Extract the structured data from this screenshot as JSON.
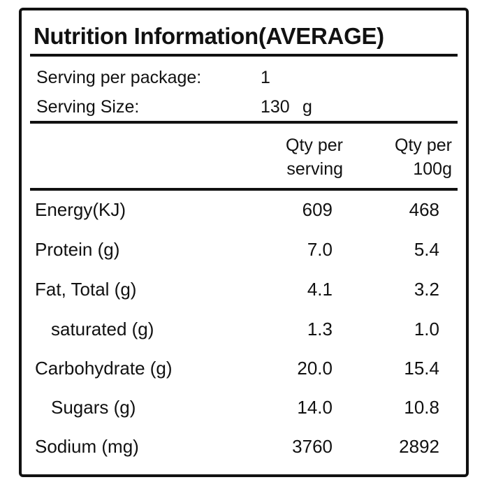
{
  "label": {
    "title": "Nutrition Information(AVERAGE)",
    "serving_per_package": {
      "label": "Serving per package:",
      "value": "1"
    },
    "serving_size": {
      "label": "Serving Size:",
      "value": "130",
      "unit": "g"
    },
    "columns": {
      "per_serving": {
        "line1": "Qty per",
        "line2": "serving"
      },
      "per_100g": {
        "line1": "Qty per",
        "line2": "100g"
      }
    },
    "rows": [
      {
        "name": "Energy(KJ)",
        "per_serving": "609",
        "per_100g": "468",
        "indented": false
      },
      {
        "name": "Protein (g)",
        "per_serving": "7.0",
        "per_100g": "5.4",
        "indented": false
      },
      {
        "name": "Fat, Total (g)",
        "per_serving": "4.1",
        "per_100g": "3.2",
        "indented": false
      },
      {
        "name": "saturated (g)",
        "per_serving": "1.3",
        "per_100g": "1.0",
        "indented": true
      },
      {
        "name": "Carbohydrate (g)",
        "per_serving": "20.0",
        "per_100g": "15.4",
        "indented": false
      },
      {
        "name": "Sugars (g)",
        "per_serving": "14.0",
        "per_100g": "10.8",
        "indented": true
      },
      {
        "name": "Sodium (mg)",
        "per_serving": "3760",
        "per_100g": "2892",
        "indented": false
      }
    ]
  }
}
